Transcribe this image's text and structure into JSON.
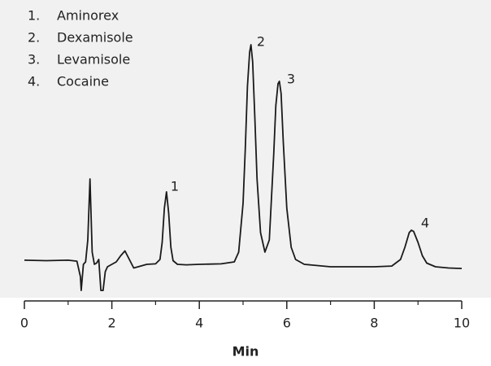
{
  "chart_data": {
    "type": "line",
    "xlabel": "Min",
    "color": "#1a1a1a",
    "legend": [
      {
        "number": "1.",
        "name": "Aminorex"
      },
      {
        "number": "2.",
        "name": "Dexamisole"
      },
      {
        "number": "3.",
        "name": "Levamisole"
      },
      {
        "number": "4.",
        "name": "Cocaine"
      }
    ],
    "annotations": [
      "1",
      "2",
      "3",
      "4"
    ],
    "x": [
      0,
      0.5,
      1.0,
      1.2,
      1.28,
      1.3,
      1.35,
      1.4,
      1.45,
      1.5,
      1.55,
      1.6,
      1.65,
      1.7,
      1.75,
      1.8,
      1.85,
      1.9,
      2.0,
      2.1,
      2.2,
      2.3,
      2.4,
      2.5,
      2.6,
      2.8,
      3.0,
      3.1,
      3.15,
      3.2,
      3.25,
      3.3,
      3.35,
      3.4,
      3.5,
      3.7,
      4.0,
      4.5,
      4.8,
      4.9,
      5.0,
      5.05,
      5.1,
      5.15,
      5.18,
      5.22,
      5.27,
      5.32,
      5.4,
      5.5,
      5.6,
      5.7,
      5.75,
      5.8,
      5.83,
      5.87,
      5.92,
      6.0,
      6.1,
      6.2,
      6.4,
      6.7,
      7.0,
      7.5,
      8.0,
      8.4,
      8.6,
      8.7,
      8.8,
      8.85,
      8.9,
      9.0,
      9.1,
      9.2,
      9.4,
      9.7,
      10.0
    ],
    "values": [
      16.7,
      16.5,
      16.7,
      16.3,
      10,
      4.3,
      15,
      16,
      25,
      50,
      20,
      15,
      15.5,
      17,
      4.3,
      4.3,
      12,
      14,
      15,
      16,
      18.5,
      20.5,
      17,
      13.5,
      14,
      15,
      15.2,
      17,
      24,
      38,
      44.7,
      36,
      22,
      16.5,
      15,
      14.8,
      15,
      15.2,
      16,
      20,
      40,
      62,
      88,
      102,
      105,
      98,
      75,
      50,
      28,
      20,
      25,
      60,
      80,
      89,
      90,
      85,
      65,
      38,
      22,
      17,
      15,
      14.5,
      14,
      14,
      14,
      14.3,
      17,
      22,
      28,
      29,
      28.5,
      24,
      18.5,
      15.5,
      14,
      13.5,
      13.3
    ],
    "xlim": [
      0,
      10
    ],
    "ylim": [
      0,
      110
    ],
    "xticks": [
      0,
      2,
      4,
      6,
      8,
      10
    ],
    "xminorticks": [
      1,
      3,
      5,
      7,
      9
    ]
  }
}
